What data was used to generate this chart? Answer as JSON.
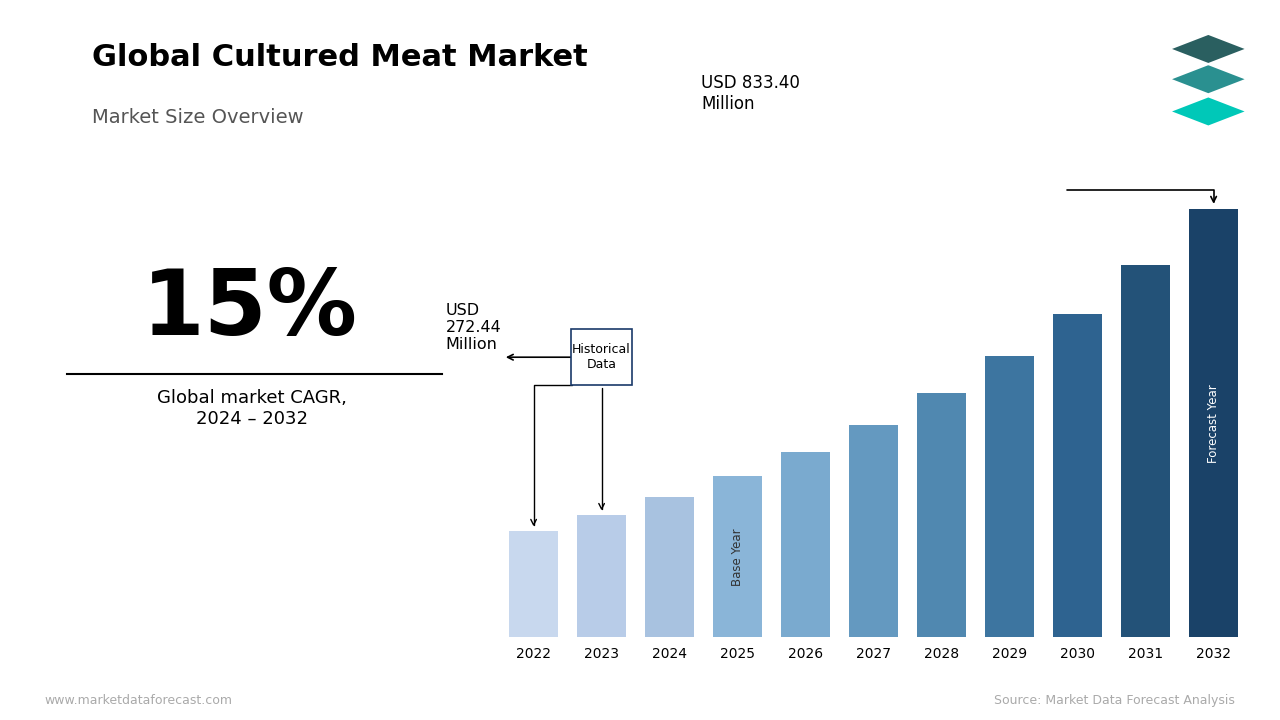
{
  "title": "Global Cultured Meat Market",
  "subtitle": "Market Size Overview",
  "cagr": "15%",
  "cagr_label": "Global market CAGR,\n2024 – 2032",
  "years": [
    2022,
    2023,
    2024,
    2025,
    2026,
    2027,
    2028,
    2029,
    2030,
    2031,
    2032
  ],
  "values": [
    206,
    237,
    272,
    313,
    360,
    414,
    476,
    548,
    630,
    725,
    833
  ],
  "bar_colors": [
    "#c8d8ee",
    "#b8cce8",
    "#a8c2e0",
    "#8ab5d8",
    "#7aaacf",
    "#6499c0",
    "#5088b0",
    "#3d75a0",
    "#2e6390",
    "#235278",
    "#1a4268"
  ],
  "annotation_272": "USD\n272.44\nMillion",
  "annotation_833": "USD 833.40\nMillion",
  "historical_label": "Historical\nData",
  "base_year_label": "Base Year",
  "forecast_year_label": "Forecast Year",
  "footer_left": "www.marketdataforecast.com",
  "footer_right": "Source: Market Data Forecast Analysis",
  "accent_color": "#2a8080",
  "background_color": "#ffffff",
  "hist_box_color": "#1a3a6a"
}
